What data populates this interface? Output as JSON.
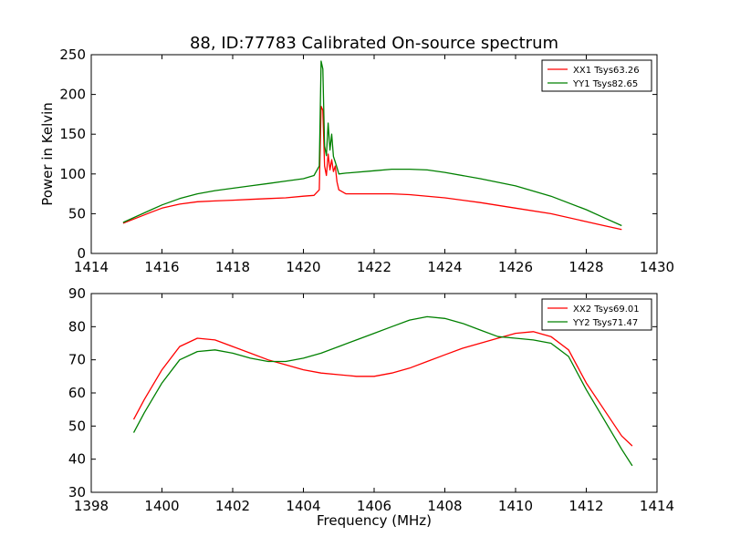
{
  "chart_data": [
    {
      "type": "line",
      "title": "88, ID:77783 Calibrated On-source spectrum",
      "xlabel": "",
      "ylabel": "Power in Kelvin",
      "xlim": [
        1414,
        1430
      ],
      "ylim": [
        0,
        250
      ],
      "xticks": [
        1414,
        1416,
        1418,
        1420,
        1422,
        1424,
        1426,
        1428,
        1430
      ],
      "yticks": [
        0,
        50,
        100,
        150,
        200,
        250
      ],
      "grid": false,
      "legend": "top-right",
      "series": [
        {
          "name": "XX1 Tsys63.26",
          "color": "#ff0000",
          "x": [
            1414.9,
            1415.3,
            1415.7,
            1416.0,
            1416.5,
            1417.0,
            1417.5,
            1418.0,
            1418.5,
            1419.0,
            1419.5,
            1420.0,
            1420.3,
            1420.45,
            1420.5,
            1420.55,
            1420.6,
            1420.65,
            1420.7,
            1420.75,
            1420.8,
            1420.85,
            1420.9,
            1420.95,
            1421.0,
            1421.2,
            1422.0,
            1422.5,
            1423.0,
            1424.0,
            1425.0,
            1426.0,
            1427.0,
            1428.0,
            1428.5,
            1429.0
          ],
          "values": [
            38,
            45,
            52,
            57,
            62,
            65,
            66,
            67,
            68,
            69,
            70,
            72,
            73,
            80,
            185,
            180,
            110,
            98,
            125,
            105,
            118,
            103,
            110,
            90,
            80,
            75,
            75,
            75,
            74,
            70,
            64,
            57,
            50,
            40,
            35,
            30
          ]
        },
        {
          "name": "YY1 Tsys82.65",
          "color": "#008000",
          "x": [
            1414.9,
            1415.3,
            1415.7,
            1416.0,
            1416.5,
            1417.0,
            1417.5,
            1418.0,
            1418.5,
            1419.0,
            1419.5,
            1420.0,
            1420.3,
            1420.45,
            1420.5,
            1420.55,
            1420.6,
            1420.65,
            1420.7,
            1420.75,
            1420.8,
            1420.85,
            1420.9,
            1420.95,
            1421.0,
            1421.2,
            1422.0,
            1422.5,
            1423.0,
            1423.5,
            1424.0,
            1425.0,
            1426.0,
            1427.0,
            1428.0,
            1428.5,
            1429.0
          ],
          "values": [
            39,
            47,
            55,
            61,
            69,
            75,
            79,
            82,
            85,
            88,
            91,
            94,
            98,
            110,
            242,
            232,
            135,
            123,
            164,
            130,
            150,
            122,
            115,
            108,
            100,
            101,
            104,
            106,
            106,
            105,
            102,
            94,
            85,
            72,
            55,
            45,
            35
          ]
        }
      ]
    },
    {
      "type": "line",
      "title": "",
      "xlabel": "Frequency (MHz)",
      "ylabel": "",
      "xlim": [
        1398,
        1414
      ],
      "ylim": [
        30,
        90
      ],
      "xticks": [
        1398,
        1400,
        1402,
        1404,
        1406,
        1408,
        1410,
        1412,
        1414
      ],
      "yticks": [
        30,
        40,
        50,
        60,
        70,
        80,
        90
      ],
      "grid": false,
      "legend": "top-right",
      "series": [
        {
          "name": "XX2 Tsys69.01",
          "color": "#ff0000",
          "x": [
            1399.2,
            1399.5,
            1400.0,
            1400.5,
            1401.0,
            1401.5,
            1402.0,
            1402.5,
            1403.0,
            1403.5,
            1404.0,
            1404.5,
            1405.0,
            1405.5,
            1406.0,
            1406.5,
            1407.0,
            1407.5,
            1408.0,
            1408.5,
            1409.0,
            1409.5,
            1410.0,
            1410.5,
            1411.0,
            1411.5,
            1412.0,
            1412.5,
            1413.0,
            1413.3
          ],
          "values": [
            52,
            58,
            67,
            74,
            76.5,
            76,
            74,
            72,
            70,
            68.5,
            67,
            66,
            65.5,
            65,
            65,
            66,
            67.5,
            69.5,
            71.5,
            73.5,
            75,
            76.5,
            78,
            78.5,
            77,
            73,
            63,
            55,
            47,
            44
          ]
        },
        {
          "name": "YY2 Tsys71.47",
          "color": "#008000",
          "x": [
            1399.2,
            1399.5,
            1400.0,
            1400.5,
            1401.0,
            1401.5,
            1402.0,
            1402.5,
            1403.0,
            1403.5,
            1404.0,
            1404.5,
            1405.0,
            1405.5,
            1406.0,
            1406.5,
            1407.0,
            1407.5,
            1408.0,
            1408.5,
            1409.0,
            1409.5,
            1410.0,
            1410.5,
            1411.0,
            1411.5,
            1412.0,
            1412.5,
            1413.0,
            1413.3
          ],
          "values": [
            48,
            54,
            63,
            70,
            72.5,
            73,
            72,
            70.5,
            69.5,
            69.5,
            70.5,
            72,
            74,
            76,
            78,
            80,
            82,
            83,
            82.5,
            81,
            79,
            77,
            76.5,
            76,
            75,
            71,
            61,
            52,
            43,
            38
          ]
        }
      ]
    }
  ]
}
